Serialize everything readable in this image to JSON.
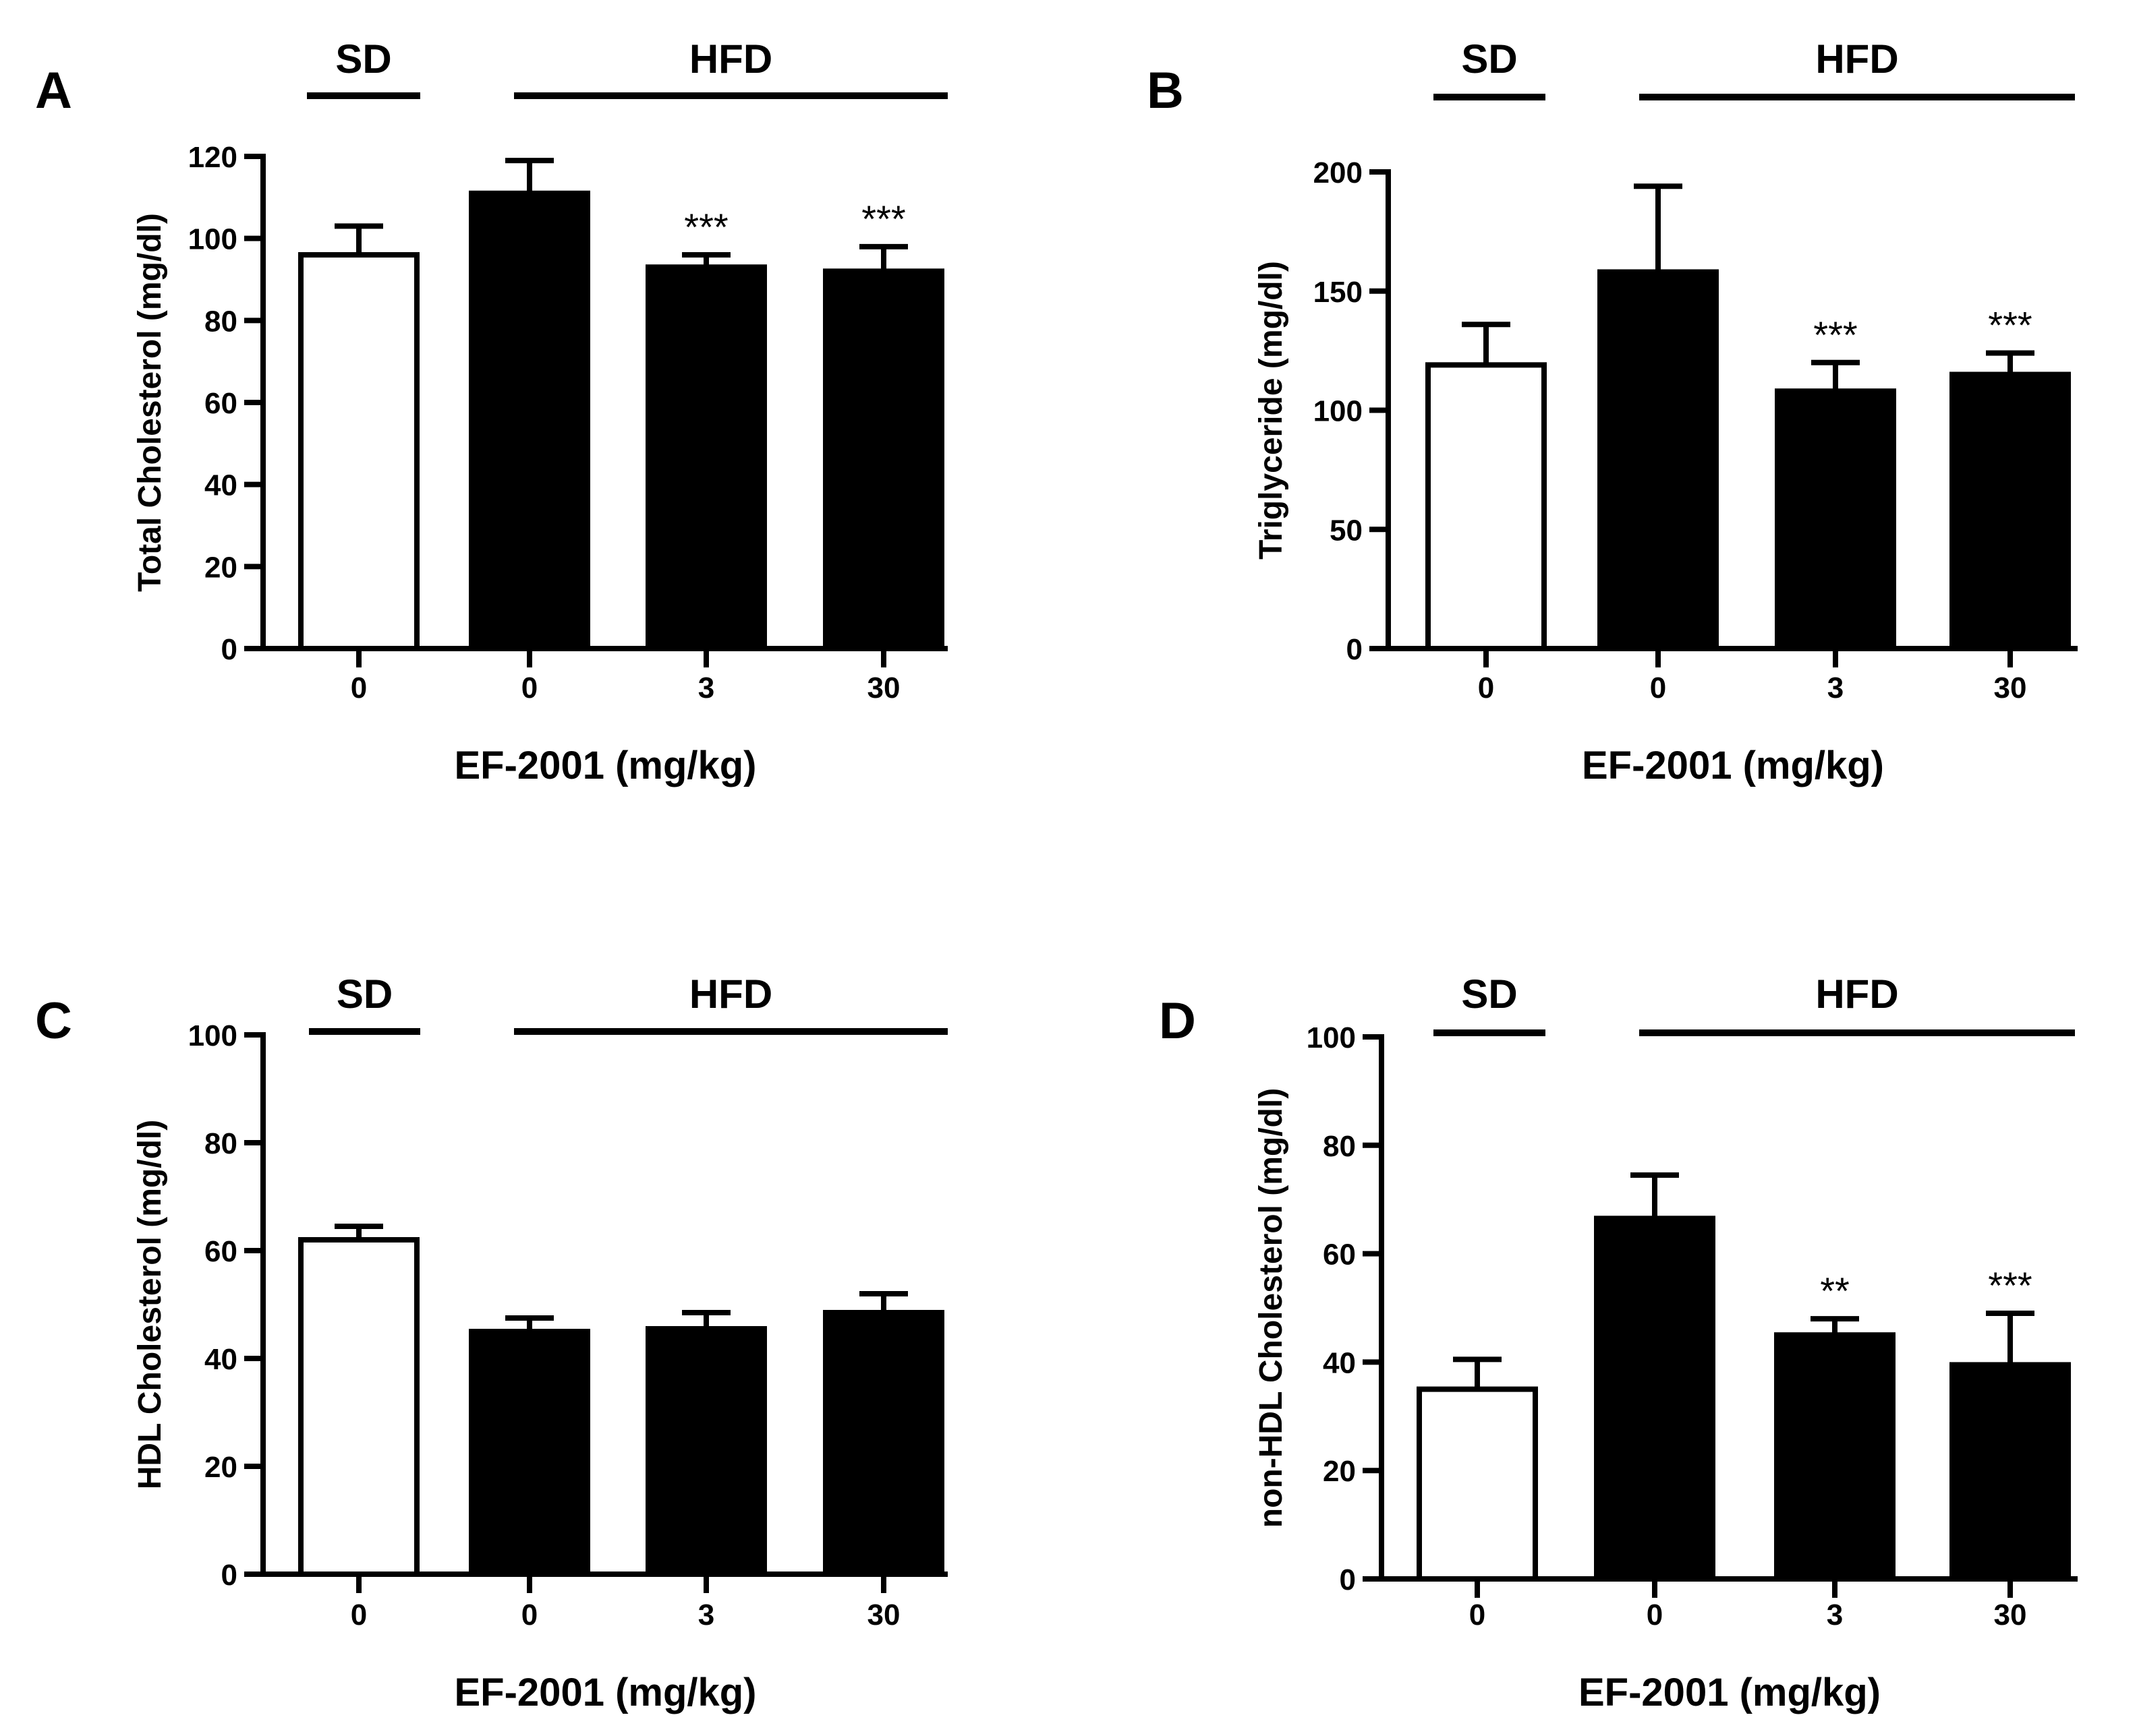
{
  "chart_data": [
    {
      "type": "bar",
      "panel": "A",
      "title": "",
      "xlabel": "EF-2001 (mg/kg)",
      "ylabel": "Total Cholesterol (mg/dl)",
      "ylim": [
        0,
        120
      ],
      "yticks": [
        0,
        20,
        40,
        60,
        80,
        100,
        120
      ],
      "categories": [
        "0",
        "0",
        "3",
        "30"
      ],
      "values": [
        96,
        111,
        93,
        92
      ],
      "errors": [
        7,
        8,
        3,
        6
      ],
      "fills": [
        "#ffffff",
        "#000000",
        "#000000",
        "#000000"
      ],
      "significance": [
        "",
        "",
        "***",
        "***"
      ],
      "groups": [
        {
          "label": "SD",
          "from": 0,
          "to": 0
        },
        {
          "label": "HFD",
          "from": 1,
          "to": 3
        }
      ]
    },
    {
      "type": "bar",
      "panel": "B",
      "title": "",
      "xlabel": "EF-2001 (mg/kg)",
      "ylabel": "Triglyceride (mg/dl)",
      "ylim": [
        0,
        200
      ],
      "yticks": [
        0,
        50,
        100,
        150,
        200
      ],
      "categories": [
        "0",
        "0",
        "3",
        "30"
      ],
      "values": [
        119,
        158,
        108,
        115
      ],
      "errors": [
        17,
        36,
        12,
        9
      ],
      "fills": [
        "#ffffff",
        "#000000",
        "#000000",
        "#000000"
      ],
      "significance": [
        "",
        "",
        "***",
        "***"
      ],
      "groups": [
        {
          "label": "SD",
          "from": 0,
          "to": 0
        },
        {
          "label": "HFD",
          "from": 1,
          "to": 3
        }
      ]
    },
    {
      "type": "bar",
      "panel": "C",
      "title": "",
      "xlabel": "EF-2001 (mg/kg)",
      "ylabel": "HDL Cholesterol (mg/dl)",
      "ylim": [
        0,
        100
      ],
      "yticks": [
        0,
        20,
        40,
        60,
        80,
        100
      ],
      "categories": [
        "0",
        "0",
        "3",
        "30"
      ],
      "values": [
        62,
        45,
        45.5,
        48.5
      ],
      "errors": [
        2.5,
        2.5,
        3,
        3.5
      ],
      "fills": [
        "#ffffff",
        "#000000",
        "#000000",
        "#000000"
      ],
      "significance": [
        "",
        "",
        "",
        ""
      ],
      "groups": [
        {
          "label": "SD",
          "from": 0,
          "to": 0
        },
        {
          "label": "HFD",
          "from": 1,
          "to": 3
        }
      ]
    },
    {
      "type": "bar",
      "panel": "D",
      "title": "",
      "xlabel": "EF-2001 (mg/kg)",
      "ylabel": "non-HDL Cholesterol (mg/dl)",
      "ylim": [
        0,
        100
      ],
      "yticks": [
        0,
        20,
        40,
        60,
        80,
        100
      ],
      "categories": [
        "0",
        "0",
        "3",
        "30"
      ],
      "values": [
        35,
        66.5,
        45,
        39.5
      ],
      "errors": [
        5.5,
        8,
        3,
        9.5
      ],
      "fills": [
        "#ffffff",
        "#000000",
        "#000000",
        "#000000"
      ],
      "significance": [
        "",
        "",
        "**",
        "***"
      ],
      "groups": [
        {
          "label": "SD",
          "from": 0,
          "to": 0
        },
        {
          "label": "HFD",
          "from": 1,
          "to": 3
        }
      ]
    }
  ]
}
